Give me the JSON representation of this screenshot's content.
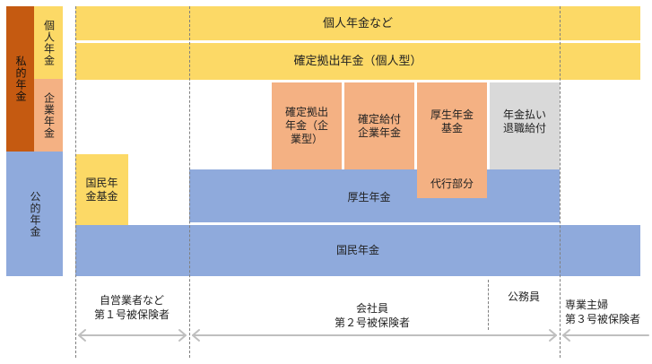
{
  "sidebar": {
    "private_pension": "私的年金",
    "individual_pension": "個人年金",
    "corporate_pension": "企業年金",
    "public_pension": "公的年金"
  },
  "blocks": {
    "individual_etc": "個人年金など",
    "dc_individual": "確定拠出年金（個人型）",
    "dc_corporate": "確定拠出\n年金（企\n業型）",
    "db_corporate": "確定給付\n企業年金",
    "kosei_fund": "厚生年金\n基金",
    "nenkin_barai": "年金払い\n退職給付",
    "national_pension_fund": "国民年\n金基金",
    "kosei_nenkin": "厚生年金",
    "daiko_bubun": "代行部分",
    "kokumin_nenkin": "国民年金"
  },
  "columns": {
    "self_employed": "自営業者など\n第１号被保険者",
    "company_employee": "会社員\n第２号被保険者",
    "civil_servant": "公務員",
    "dependent_spouse": "専業主婦\n第３号被保険者"
  },
  "colors": {
    "yellow": "#fcd966",
    "salmon": "#f4b183",
    "blue": "#8faadc",
    "gray": "#d9d9d9",
    "brown": "#c55a11",
    "arrow": "#bfbfbf"
  }
}
